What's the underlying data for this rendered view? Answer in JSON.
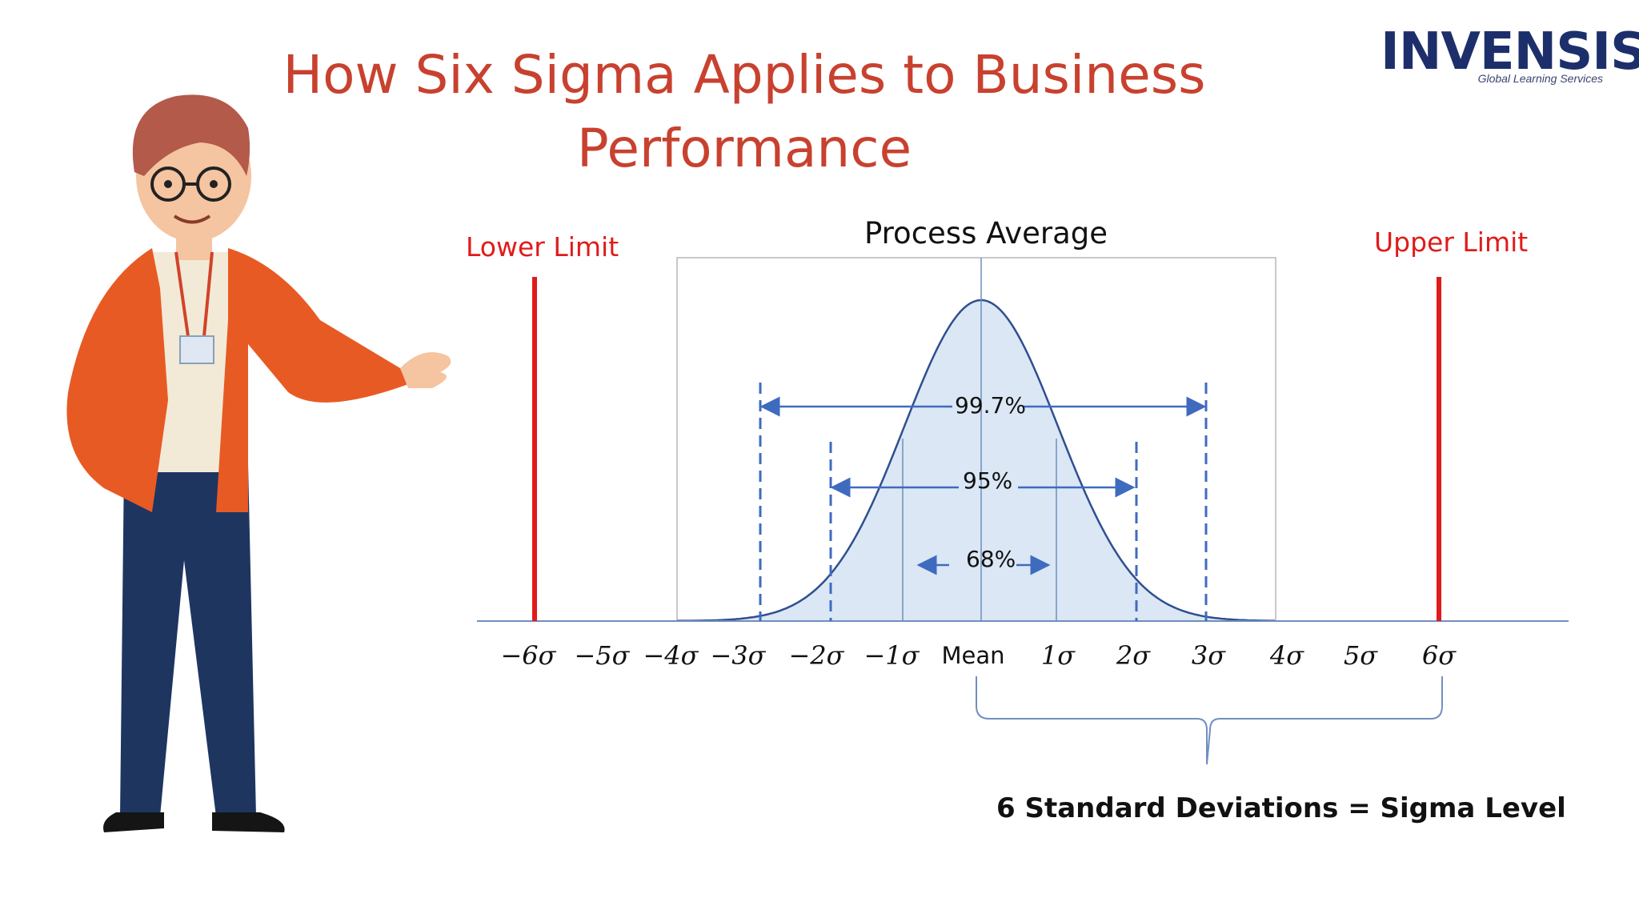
{
  "title": {
    "line1": "How Six Sigma Applies to Business",
    "line2": "Performance"
  },
  "logo": {
    "text": "INVENSIS",
    "tagline": "Global Learning Services"
  },
  "labels": {
    "lower_limit": "Lower Limit",
    "upper_limit": "Upper Limit",
    "process_average": "Process Average",
    "pct_997": "99.7%",
    "pct_95": "95%",
    "pct_68": "68%",
    "sigma_level": "6 Standard Deviations = Sigma Level"
  },
  "axis_ticks": [
    "−6σ",
    "−5σ",
    "−4σ",
    "−3σ",
    "−2σ",
    "−1σ",
    "Mean",
    "1σ",
    "2σ",
    "3σ",
    "4σ",
    "5σ",
    "6σ"
  ],
  "colors": {
    "title": "#c8412f",
    "limit_red": "#e01b1b",
    "curve_line": "#2f4f8f",
    "curve_fill": "#dbe7f5",
    "arrow_blue": "#3f6bbf"
  },
  "chart_data": {
    "type": "area",
    "description_values": {
      "sigma_positions": [
        -6,
        -5,
        -4,
        -3,
        -2,
        -1,
        0,
        1,
        2,
        3,
        4,
        5,
        6
      ],
      "coverage": [
        {
          "range": [
            -1,
            1
          ],
          "label": "68%"
        },
        {
          "range": [
            -2,
            2
          ],
          "label": "95%"
        },
        {
          "range": [
            -3,
            3
          ],
          "label": "99.7%"
        }
      ],
      "limits": {
        "lower": -6,
        "upper": 6
      }
    }
  }
}
